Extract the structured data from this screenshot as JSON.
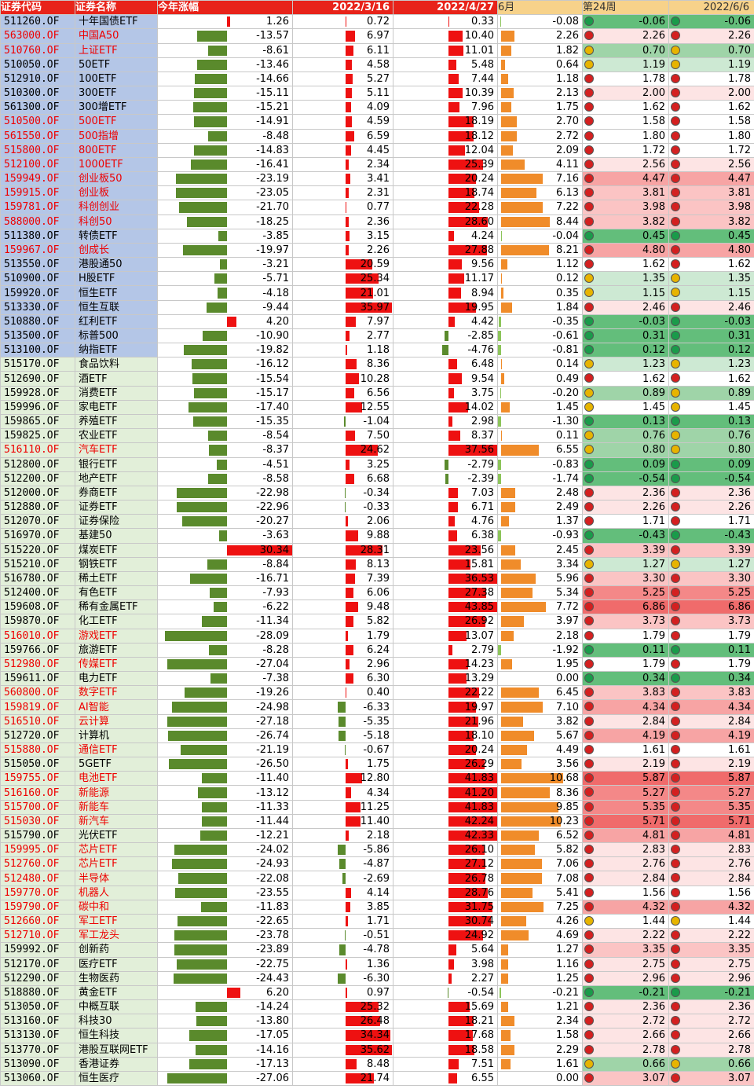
{
  "headers": [
    "证券代码",
    "证券名称",
    "今年涨幅",
    "2022/3/16",
    "2022/4/27",
    "6月",
    "第24周",
    "2022/6/6"
  ],
  "colors": {
    "header_red": "#e8231a",
    "blue_group": "#b4c6e7",
    "green_group": "#e2efd9",
    "pos_bar_red": "#ee1111",
    "neg_bar_green": "#5a8a2c",
    "orange_bar": "#f08c2a",
    "text_red": "#ee0000"
  },
  "rows": [
    [
      "511260.OF",
      "十年国债ETF",
      1.26,
      0.72,
      0.33,
      -0.08,
      -0.06,
      -0.06,
      1,
      0
    ],
    [
      "563000.OF",
      "中国A50",
      -13.57,
      6.97,
      10.4,
      2.26,
      2.26,
      2.26,
      1,
      1
    ],
    [
      "510760.OF",
      "上证ETF",
      -8.61,
      6.11,
      11.01,
      1.82,
      0.7,
      0.7,
      1,
      1
    ],
    [
      "510050.OF",
      "50ETF",
      -13.46,
      4.58,
      5.48,
      0.64,
      1.19,
      1.19,
      1,
      0
    ],
    [
      "512910.OF",
      "100ETF",
      -14.66,
      5.27,
      7.44,
      1.18,
      1.78,
      1.78,
      1,
      0
    ],
    [
      "510300.OF",
      "300ETF",
      -15.11,
      5.11,
      10.39,
      2.13,
      2.0,
      2.0,
      1,
      0
    ],
    [
      "561300.OF",
      "300增ETF",
      -15.21,
      4.09,
      7.96,
      1.75,
      1.62,
      1.62,
      1,
      0
    ],
    [
      "510500.OF",
      "500ETF",
      -14.91,
      4.59,
      18.19,
      2.7,
      1.58,
      1.58,
      1,
      1
    ],
    [
      "561550.OF",
      "500指增",
      -8.48,
      6.59,
      18.12,
      2.72,
      1.8,
      1.8,
      1,
      1
    ],
    [
      "515800.OF",
      "800ETF",
      -14.83,
      4.45,
      12.04,
      2.09,
      1.72,
      1.72,
      1,
      1
    ],
    [
      "512100.OF",
      "1000ETF",
      -16.41,
      2.34,
      25.39,
      4.11,
      2.56,
      2.56,
      1,
      1
    ],
    [
      "159949.OF",
      "创业板50",
      -23.19,
      3.41,
      20.24,
      7.16,
      4.47,
      4.47,
      1,
      1
    ],
    [
      "159915.OF",
      "创业板",
      -23.05,
      2.31,
      18.74,
      6.13,
      3.81,
      3.81,
      1,
      1
    ],
    [
      "159781.OF",
      "科创创业",
      -21.7,
      0.77,
      22.28,
      7.22,
      3.98,
      3.98,
      1,
      1
    ],
    [
      "588000.OF",
      "科创50",
      -18.25,
      2.36,
      28.6,
      8.44,
      3.82,
      3.82,
      1,
      1
    ],
    [
      "511380.OF",
      "转债ETF",
      -3.85,
      3.15,
      4.24,
      -0.04,
      0.45,
      0.45,
      1,
      0
    ],
    [
      "159967.OF",
      "创成长",
      -19.97,
      2.26,
      27.88,
      8.21,
      4.8,
      4.8,
      1,
      1
    ],
    [
      "513550.OF",
      "港股通50",
      -3.21,
      20.59,
      9.56,
      1.12,
      1.62,
      1.62,
      1,
      0
    ],
    [
      "510900.OF",
      "H股ETF",
      -5.71,
      25.34,
      11.17,
      0.12,
      1.35,
      1.35,
      1,
      0
    ],
    [
      "159920.OF",
      "恒生ETF",
      -4.18,
      21.01,
      8.94,
      0.35,
      1.15,
      1.15,
      1,
      0
    ],
    [
      "513330.OF",
      "恒生互联",
      -9.44,
      35.97,
      19.95,
      1.84,
      2.46,
      2.46,
      1,
      0
    ],
    [
      "510880.OF",
      "红利ETF",
      4.2,
      7.97,
      4.42,
      -0.35,
      -0.03,
      -0.03,
      1,
      0
    ],
    [
      "513500.OF",
      "标普500",
      -10.9,
      2.77,
      -2.85,
      -0.61,
      0.31,
      0.31,
      1,
      0
    ],
    [
      "513100.OF",
      "纳指ETF",
      -19.82,
      1.18,
      -4.76,
      -0.81,
      0.12,
      0.12,
      1,
      0
    ],
    [
      "515170.OF",
      "食品饮料",
      -16.12,
      8.36,
      6.48,
      0.14,
      1.23,
      1.23,
      2,
      0
    ],
    [
      "512690.OF",
      "酒ETF",
      -15.54,
      10.28,
      9.54,
      0.49,
      1.62,
      1.62,
      2,
      0
    ],
    [
      "159928.OF",
      "消费ETF",
      -15.17,
      6.56,
      3.75,
      -0.2,
      0.89,
      0.89,
      2,
      0
    ],
    [
      "159996.OF",
      "家电ETF",
      -17.4,
      12.55,
      14.02,
      1.45,
      1.45,
      1.45,
      2,
      0
    ],
    [
      "159865.OF",
      "养殖ETF",
      -15.35,
      -1.04,
      2.98,
      -1.3,
      0.13,
      0.13,
      2,
      0
    ],
    [
      "159825.OF",
      "农业ETF",
      -8.54,
      7.5,
      8.37,
      0.11,
      0.76,
      0.76,
      2,
      0
    ],
    [
      "516110.OF",
      "汽车ETF",
      -8.37,
      24.62,
      37.56,
      6.55,
      0.8,
      0.8,
      2,
      1
    ],
    [
      "512800.OF",
      "银行ETF",
      -4.51,
      3.25,
      -2.79,
      -0.83,
      0.09,
      0.09,
      2,
      0
    ],
    [
      "512200.OF",
      "地产ETF",
      -8.58,
      6.68,
      -2.39,
      -1.74,
      -0.54,
      -0.54,
      2,
      0
    ],
    [
      "512000.OF",
      "券商ETF",
      -22.98,
      -0.34,
      7.03,
      2.48,
      2.36,
      2.36,
      2,
      0
    ],
    [
      "512880.OF",
      "证券ETF",
      -22.96,
      -0.33,
      6.71,
      2.49,
      2.26,
      2.26,
      2,
      0
    ],
    [
      "512070.OF",
      "证券保险",
      -20.27,
      2.06,
      4.76,
      1.37,
      1.71,
      1.71,
      2,
      0
    ],
    [
      "516970.OF",
      "基建50",
      -3.63,
      9.88,
      6.38,
      -0.93,
      -0.43,
      -0.43,
      2,
      0
    ],
    [
      "515220.OF",
      "煤炭ETF",
      30.34,
      28.31,
      23.56,
      2.45,
      3.39,
      3.39,
      2,
      0
    ],
    [
      "515210.OF",
      "钢铁ETF",
      -8.84,
      8.13,
      15.81,
      3.34,
      1.27,
      1.27,
      2,
      0
    ],
    [
      "516780.OF",
      "稀土ETF",
      -16.71,
      7.39,
      36.53,
      5.96,
      3.3,
      3.3,
      2,
      0
    ],
    [
      "512400.OF",
      "有色ETF",
      -7.93,
      6.06,
      27.38,
      5.34,
      5.25,
      5.25,
      2,
      0
    ],
    [
      "159608.OF",
      "稀有金属ETF",
      -6.22,
      9.48,
      43.85,
      7.72,
      6.86,
      6.86,
      2,
      0
    ],
    [
      "159870.OF",
      "化工ETF",
      -11.34,
      5.82,
      26.92,
      3.97,
      3.73,
      3.73,
      2,
      0
    ],
    [
      "516010.OF",
      "游戏ETF",
      -28.09,
      1.79,
      13.07,
      2.18,
      1.79,
      1.79,
      2,
      1
    ],
    [
      "159766.OF",
      "旅游ETF",
      -8.28,
      6.24,
      2.79,
      -1.92,
      0.11,
      0.11,
      2,
      0
    ],
    [
      "512980.OF",
      "传媒ETF",
      -27.04,
      2.96,
      14.23,
      1.95,
      1.79,
      1.79,
      2,
      1
    ],
    [
      "159611.OF",
      "电力ETF",
      -7.38,
      6.3,
      13.29,
      0.0,
      0.34,
      0.34,
      2,
      0
    ],
    [
      "560800.OF",
      "数字ETF",
      -19.26,
      0.4,
      22.22,
      6.45,
      3.83,
      3.83,
      2,
      1
    ],
    [
      "159819.OF",
      "AI智能",
      -24.98,
      -6.33,
      19.97,
      7.1,
      4.34,
      4.34,
      2,
      1
    ],
    [
      "516510.OF",
      "云计算",
      -27.18,
      -5.35,
      21.96,
      3.82,
      2.84,
      2.84,
      2,
      1
    ],
    [
      "512720.OF",
      "计算机",
      -26.74,
      -5.18,
      18.1,
      5.67,
      4.19,
      4.19,
      2,
      0
    ],
    [
      "515880.OF",
      "通信ETF",
      -21.19,
      -0.67,
      20.24,
      4.49,
      1.61,
      1.61,
      2,
      1
    ],
    [
      "515050.OF",
      "5GETF",
      -26.5,
      1.75,
      26.29,
      3.56,
      2.19,
      2.19,
      2,
      0
    ],
    [
      "159755.OF",
      "电池ETF",
      -11.4,
      12.8,
      41.83,
      10.68,
      5.87,
      5.87,
      2,
      1
    ],
    [
      "516160.OF",
      "新能源",
      -13.12,
      4.34,
      41.2,
      8.36,
      5.27,
      5.27,
      2,
      1
    ],
    [
      "515700.OF",
      "新能车",
      -11.33,
      11.25,
      41.83,
      9.85,
      5.35,
      5.35,
      2,
      1
    ],
    [
      "515030.OF",
      "新汽车",
      -11.44,
      11.4,
      42.24,
      10.23,
      5.71,
      5.71,
      2,
      1
    ],
    [
      "515790.OF",
      "光伏ETF",
      -12.21,
      2.18,
      42.33,
      6.52,
      4.81,
      4.81,
      2,
      0
    ],
    [
      "159995.OF",
      "芯片ETF",
      -24.02,
      -5.86,
      26.1,
      5.82,
      2.83,
      2.83,
      2,
      1
    ],
    [
      "512760.OF",
      "芯片ETF",
      -24.93,
      -4.87,
      27.12,
      7.06,
      2.76,
      2.76,
      2,
      1
    ],
    [
      "512480.OF",
      "半导体",
      -22.08,
      -2.69,
      26.78,
      7.08,
      2.84,
      2.84,
      2,
      1
    ],
    [
      "159770.OF",
      "机器人",
      -23.55,
      4.14,
      28.76,
      5.41,
      1.56,
      1.56,
      2,
      1
    ],
    [
      "159790.OF",
      "碳中和",
      -11.83,
      3.85,
      31.75,
      7.25,
      4.32,
      4.32,
      2,
      1
    ],
    [
      "512660.OF",
      "军工ETF",
      -22.65,
      1.71,
      30.74,
      4.26,
      1.44,
      1.44,
      2,
      1
    ],
    [
      "512710.OF",
      "军工龙头",
      -23.78,
      -0.51,
      24.92,
      4.69,
      2.22,
      2.22,
      2,
      1
    ],
    [
      "159992.OF",
      "创新药",
      -23.89,
      -4.78,
      5.64,
      1.27,
      3.35,
      3.35,
      2,
      0
    ],
    [
      "512170.OF",
      "医疗ETF",
      -22.75,
      1.36,
      3.98,
      1.16,
      2.75,
      2.75,
      2,
      0
    ],
    [
      "512290.OF",
      "生物医药",
      -24.43,
      -6.3,
      2.27,
      1.25,
      2.96,
      2.96,
      2,
      0
    ],
    [
      "518880.OF",
      "黄金ETF",
      6.2,
      0.97,
      -0.54,
      -0.21,
      -0.21,
      -0.21,
      2,
      0
    ],
    [
      "513050.OF",
      "中概互联",
      -14.24,
      25.32,
      15.69,
      1.21,
      2.36,
      2.36,
      2,
      0
    ],
    [
      "513160.OF",
      "科技30",
      -13.8,
      26.48,
      18.21,
      2.34,
      2.72,
      2.72,
      2,
      0
    ],
    [
      "513130.OF",
      "恒生科技",
      -17.05,
      34.34,
      17.68,
      1.58,
      2.66,
      2.66,
      2,
      0
    ],
    [
      "513770.OF",
      "港股互联网ETF",
      -14.16,
      35.62,
      18.58,
      2.29,
      2.78,
      2.78,
      2,
      0
    ],
    [
      "513090.OF",
      "香港证券",
      -17.13,
      8.48,
      7.51,
      1.61,
      0.66,
      0.66,
      2,
      0
    ],
    [
      "513060.OF",
      "恒生医疗",
      -27.06,
      21.74,
      6.55,
      0.0,
      3.07,
      3.07,
      2,
      0
    ]
  ]
}
